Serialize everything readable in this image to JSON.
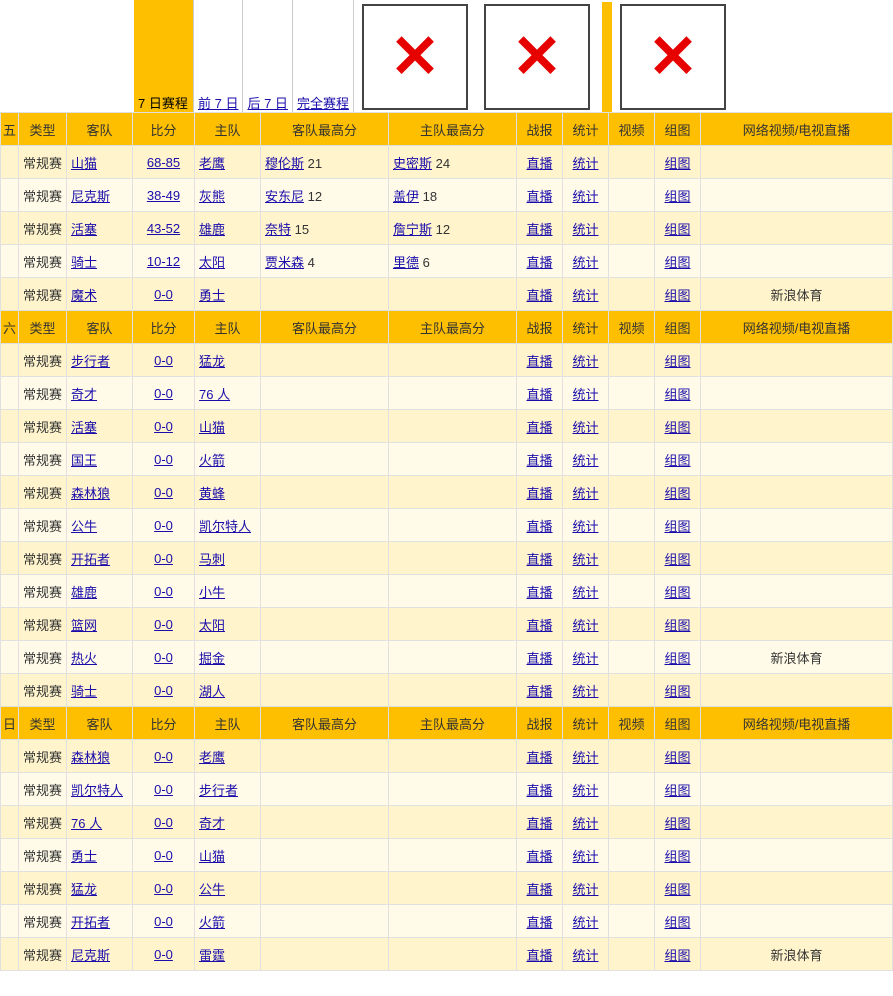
{
  "tabs": {
    "t0": "7 日赛程",
    "t1": "前 7 日",
    "t2": "后 7 日",
    "t3": "完全赛程"
  },
  "headers": {
    "day": "",
    "type": "类型",
    "away": "客队",
    "score": "比分",
    "home": "主队",
    "away_high": "客队最高分",
    "home_high": "主队最高分",
    "report": "战报",
    "stats": "统计",
    "video": "视频",
    "gallery": "组图",
    "net": "网络视频/电视直播"
  },
  "day_labels": {
    "d1": "五",
    "d2": "六",
    "d3": "日"
  },
  "common": {
    "regular": "常规赛",
    "live": "直播",
    "stats": "统计",
    "gallery": "组图",
    "sina": "新浪体育"
  },
  "sec1": [
    {
      "away": "山猫",
      "score": "68-85",
      "home": "老鹰",
      "ap": "穆伦斯",
      "as": "21",
      "hp": "史密斯",
      "hs": "24",
      "net": ""
    },
    {
      "away": "尼克斯",
      "score": "38-49",
      "home": "灰熊",
      "ap": "安东尼",
      "as": "12",
      "hp": "盖伊",
      "hs": "18",
      "net": ""
    },
    {
      "away": "活塞",
      "score": "43-52",
      "home": "雄鹿",
      "ap": "奈特",
      "as": "15",
      "hp": "詹宁斯",
      "hs": "12",
      "net": ""
    },
    {
      "away": "骑士",
      "score": "10-12",
      "home": "太阳",
      "ap": "贾米森",
      "as": "4",
      "hp": "里德",
      "hs": "6",
      "net": ""
    },
    {
      "away": "魔术",
      "score": "0-0",
      "home": "勇士",
      "ap": "",
      "as": "",
      "hp": "",
      "hs": "",
      "net": "新浪体育"
    }
  ],
  "sec2": [
    {
      "away": "步行者",
      "score": "0-0",
      "home": "猛龙",
      "net": ""
    },
    {
      "away": "奇才",
      "score": "0-0",
      "home": "76 人",
      "net": ""
    },
    {
      "away": "活塞",
      "score": "0-0",
      "home": "山猫",
      "net": ""
    },
    {
      "away": "国王",
      "score": "0-0",
      "home": "火箭",
      "net": ""
    },
    {
      "away": "森林狼",
      "score": "0-0",
      "home": "黄蜂",
      "net": ""
    },
    {
      "away": "公牛",
      "score": "0-0",
      "home": "凯尔特人",
      "net": ""
    },
    {
      "away": "开拓者",
      "score": "0-0",
      "home": "马刺",
      "net": ""
    },
    {
      "away": "雄鹿",
      "score": "0-0",
      "home": "小牛",
      "net": ""
    },
    {
      "away": "篮网",
      "score": "0-0",
      "home": "太阳",
      "net": ""
    },
    {
      "away": "热火",
      "score": "0-0",
      "home": "掘金",
      "net": "新浪体育"
    },
    {
      "away": "骑士",
      "score": "0-0",
      "home": "湖人",
      "net": ""
    }
  ],
  "sec3": [
    {
      "away": "森林狼",
      "score": "0-0",
      "home": "老鹰",
      "net": ""
    },
    {
      "away": "凯尔特人",
      "score": "0-0",
      "home": "步行者",
      "net": ""
    },
    {
      "away": "76 人",
      "score": "0-0",
      "home": "奇才",
      "net": ""
    },
    {
      "away": "勇士",
      "score": "0-0",
      "home": "山猫",
      "net": ""
    },
    {
      "away": "猛龙",
      "score": "0-0",
      "home": "公牛",
      "net": ""
    },
    {
      "away": "开拓者",
      "score": "0-0",
      "home": "火箭",
      "net": ""
    },
    {
      "away": "尼克斯",
      "score": "0-0",
      "home": "雷霆",
      "net": "新浪体育"
    }
  ]
}
